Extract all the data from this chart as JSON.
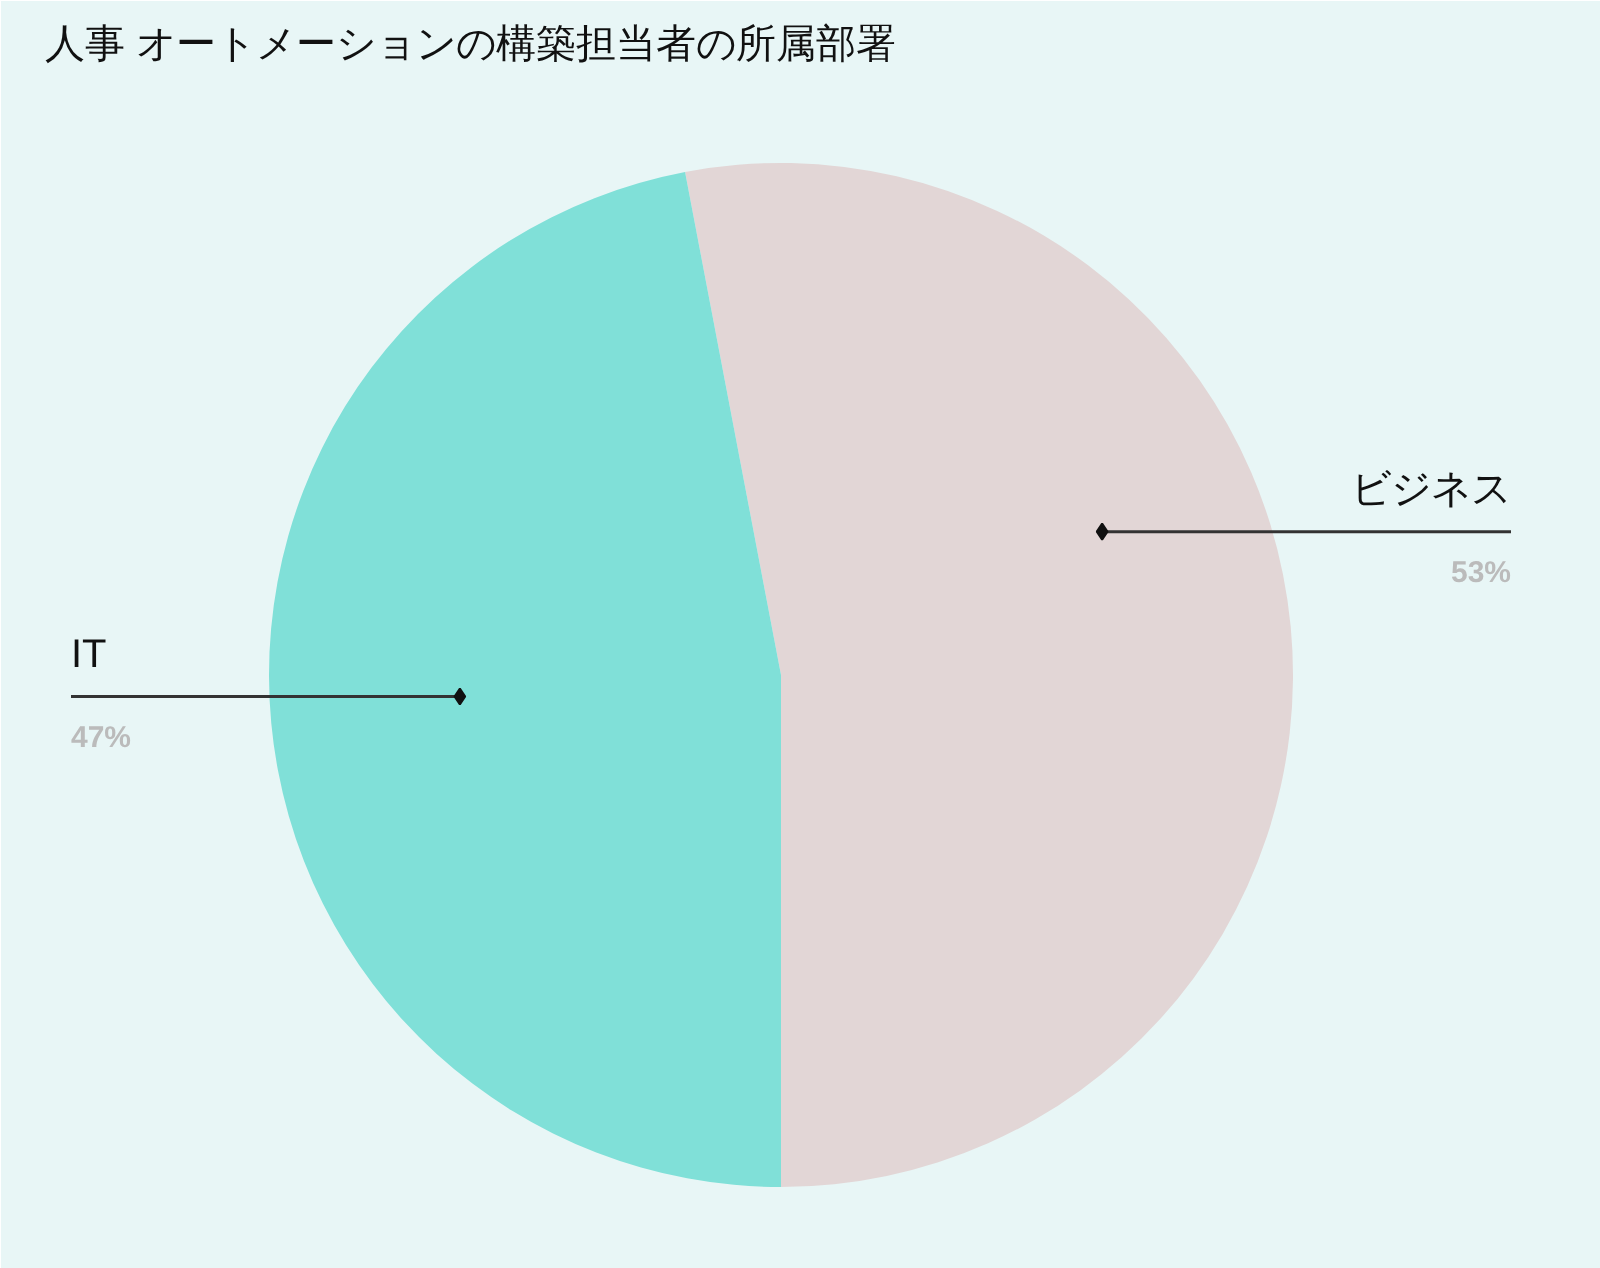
{
  "chart_data": {
    "type": "pie",
    "title": "人事 オートメーションの構築担当者の所属部署",
    "categories": [
      "ビジネス",
      "IT"
    ],
    "values": [
      53,
      47
    ],
    "colors": [
      "#e2d6d6",
      "#80e0d8"
    ],
    "value_labels": [
      "53%",
      "47%"
    ]
  }
}
